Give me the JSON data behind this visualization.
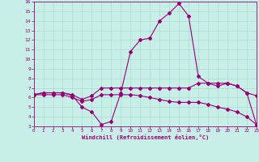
{
  "xlabel": "Windchill (Refroidissement éolien,°C)",
  "background_color": "#c8eee8",
  "grid_color": "#aaddcc",
  "line_color": "#990077",
  "ylim": [
    3,
    16
  ],
  "xlim": [
    0,
    23
  ],
  "yticks": [
    3,
    4,
    5,
    6,
    7,
    8,
    9,
    10,
    11,
    12,
    13,
    14,
    15,
    16
  ],
  "xticks": [
    0,
    1,
    2,
    3,
    4,
    5,
    6,
    7,
    8,
    9,
    10,
    11,
    12,
    13,
    14,
    15,
    16,
    17,
    18,
    19,
    20,
    21,
    22,
    23
  ],
  "line1_x": [
    0,
    1,
    2,
    3,
    4,
    5,
    6,
    7,
    8,
    9,
    10,
    11,
    12,
    13,
    14,
    15,
    16,
    17,
    18,
    19,
    20,
    21,
    22,
    23
  ],
  "line1_y": [
    6.3,
    6.5,
    6.5,
    6.5,
    6.3,
    5.8,
    6.2,
    7.0,
    7.0,
    7.0,
    7.0,
    7.0,
    7.0,
    7.0,
    7.0,
    7.0,
    7.0,
    7.5,
    7.5,
    7.5,
    7.5,
    7.2,
    6.5,
    6.2
  ],
  "line2_x": [
    0,
    1,
    2,
    3,
    4,
    5,
    6,
    7,
    8,
    9,
    10,
    11,
    12,
    13,
    14,
    15,
    16,
    17,
    18,
    19,
    20,
    21,
    22,
    23
  ],
  "line2_y": [
    6.3,
    6.5,
    6.5,
    6.5,
    6.2,
    5.0,
    4.5,
    3.2,
    3.5,
    6.5,
    10.8,
    12.0,
    12.2,
    14.0,
    14.8,
    15.8,
    14.5,
    8.2,
    7.5,
    7.2,
    7.5,
    7.2,
    6.5,
    3.2
  ],
  "line3_x": [
    0,
    1,
    2,
    3,
    4,
    5,
    6,
    7,
    8,
    9,
    10,
    11,
    12,
    13,
    14,
    15,
    16,
    17,
    18,
    19,
    20,
    21,
    22,
    23
  ],
  "line3_y": [
    6.3,
    6.3,
    6.3,
    6.3,
    6.0,
    5.6,
    5.8,
    6.3,
    6.3,
    6.3,
    6.3,
    6.2,
    6.0,
    5.8,
    5.6,
    5.5,
    5.5,
    5.5,
    5.3,
    5.0,
    4.8,
    4.5,
    4.0,
    3.2
  ]
}
